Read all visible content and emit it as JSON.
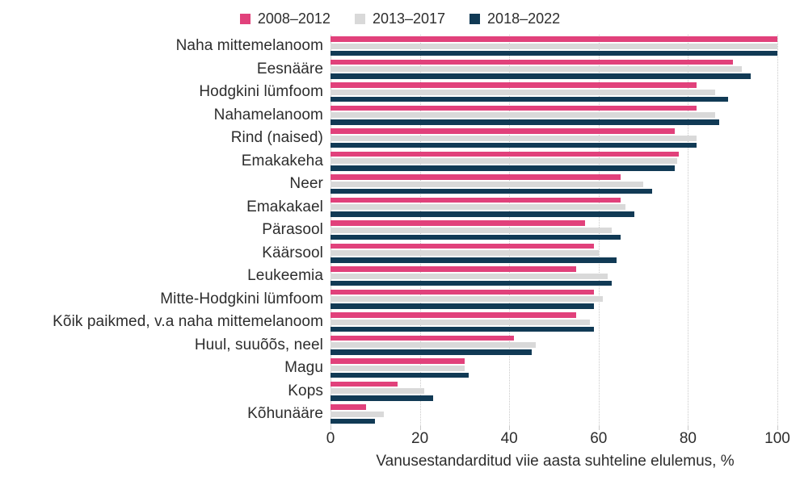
{
  "colors": {
    "background": "#FFFFFF",
    "text": "#2D2D2D",
    "gridline": "#C9C9C9",
    "series_2008_2012": "#E1417B",
    "series_2013_2017": "#D9D9D9",
    "series_2018_2022": "#113A55"
  },
  "legend": {
    "position": "top",
    "items": [
      {
        "key": "2008-2012",
        "label": "2008–2012",
        "color": "#E1417B",
        "swatch_icon": "square-swatch-icon"
      },
      {
        "key": "2013-2017",
        "label": "2013–2017",
        "color": "#D9D9D9",
        "swatch_icon": "square-swatch-icon"
      },
      {
        "key": "2018-2022",
        "label": "2018–2022",
        "color": "#113A55",
        "swatch_icon": "square-swatch-icon"
      }
    ]
  },
  "chart_data": {
    "type": "bar",
    "orientation": "horizontal",
    "title": "",
    "xlabel": "Vanusestandarditud viie aasta suhteline elulemus, %",
    "ylabel": "",
    "xlim": [
      0,
      100
    ],
    "xticks": [
      0,
      20,
      40,
      60,
      80,
      100
    ],
    "grid": true,
    "legend_position": "top",
    "categories": [
      "Naha mittemelanoom",
      "Eesnääre",
      "Hodgkini lümfoom",
      "Nahamelanoom",
      "Rind (naised)",
      "Emakakeha",
      "Neer",
      "Emakakael",
      "Pärasool",
      "Käärsool",
      "Leukeemia",
      "Mitte-Hodgkini lümfoom",
      "Kõik paikmed, v.a naha mittemelanoom",
      "Huul, suuõõs, neel",
      "Magu",
      "Kops",
      "Kõhunääre"
    ],
    "series": [
      {
        "name": "2008–2012",
        "key": "2008-2012",
        "color": "#E1417B",
        "values": [
          100,
          90,
          82,
          82,
          77,
          78,
          65,
          65,
          57,
          59,
          55,
          59,
          55,
          41,
          30,
          15,
          8
        ]
      },
      {
        "name": "2013–2017",
        "key": "2013-2017",
        "color": "#D9D9D9",
        "values": [
          100,
          92,
          86,
          86,
          82,
          77.5,
          70,
          66,
          63,
          60,
          62,
          61,
          58,
          46,
          30,
          21,
          12
        ]
      },
      {
        "name": "2018–2022",
        "key": "2018-2022",
        "color": "#113A55",
        "values": [
          100,
          94,
          89,
          87,
          82,
          77,
          72,
          68,
          65,
          64,
          63,
          59,
          59,
          45,
          31,
          23,
          10
        ]
      }
    ]
  }
}
